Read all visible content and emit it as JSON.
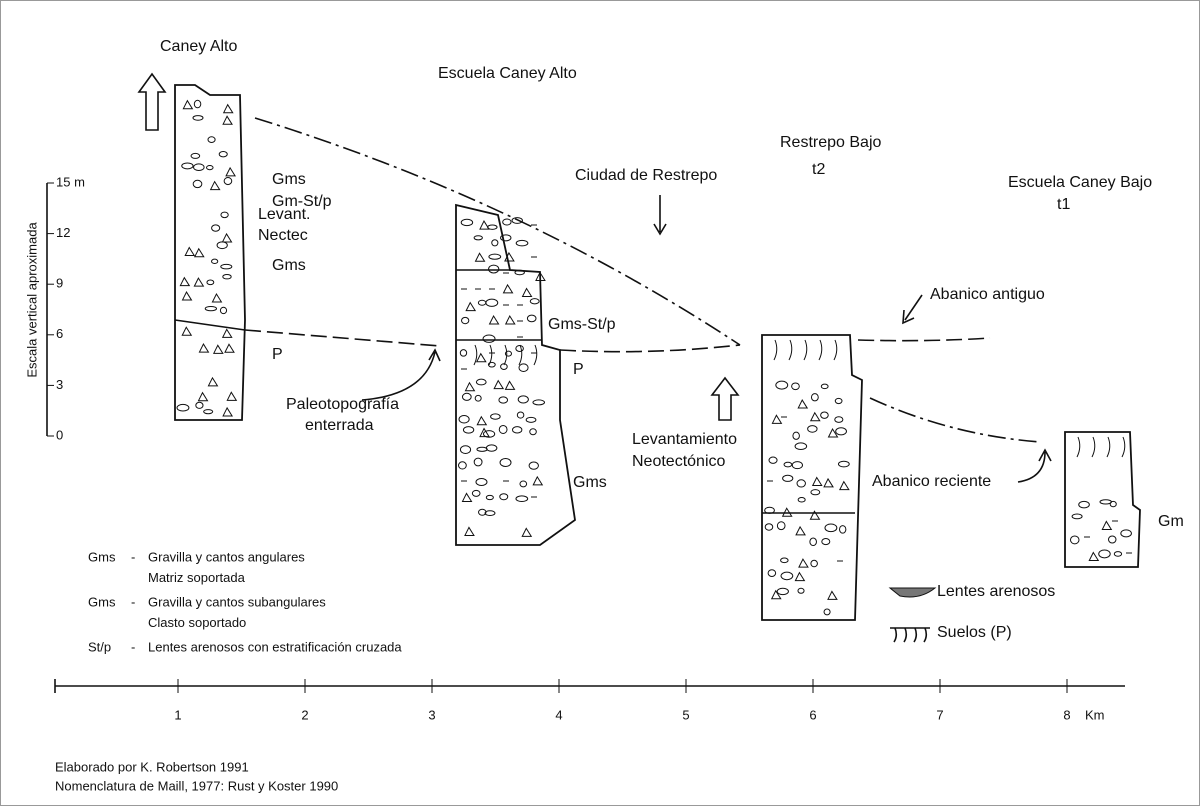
{
  "columns": [
    {
      "label": "Caney Alto"
    },
    {
      "label": "Escuela Caney Alto"
    },
    {
      "label": "Restrepo Bajo",
      "sublabel": "t2"
    },
    {
      "label": "Escuela Caney Bajo",
      "sublabel": "t1"
    }
  ],
  "annotations": [
    "Levant.",
    "Nectec",
    "Gms",
    "Gm-St/p",
    "Gms",
    "P",
    "Paleotopografía",
    "enterrada",
    "Gms-St/p",
    "P",
    "Gms",
    "Ciudad de Restrepo",
    "Abanico antiguo",
    "Levantamiento",
    "Neotectónico",
    "Abanico reciente",
    "Gm"
  ],
  "vertical_scale": {
    "title": "Escala vertical aproximada",
    "ticks": [
      "15 m",
      "12",
      "9",
      "6",
      "3",
      "0"
    ]
  },
  "horizontal_scale": {
    "ticks": [
      "1",
      "2",
      "3",
      "4",
      "5",
      "6",
      "7",
      "8"
    ],
    "unit": "Km"
  },
  "legend": {
    "codes": [
      {
        "code": "Gms",
        "dash": "-",
        "lines": [
          "Gravilla y cantos angulares",
          "Matriz soportada"
        ]
      },
      {
        "code": "Gms",
        "dash": "-",
        "lines": [
          "Gravilla y cantos subangulares",
          "Clasto soportado"
        ]
      },
      {
        "code": "St/p",
        "dash": "-",
        "lines": [
          "Lentes arenosos con estratificación cruzada"
        ]
      }
    ],
    "symbols": [
      "Lentes arenosos",
      "Suelos (P)"
    ]
  },
  "footer": [
    "Elaborado por K. Robertson 1991",
    "Nomenclatura de Maill, 1977: Rust y Koster 1990"
  ]
}
